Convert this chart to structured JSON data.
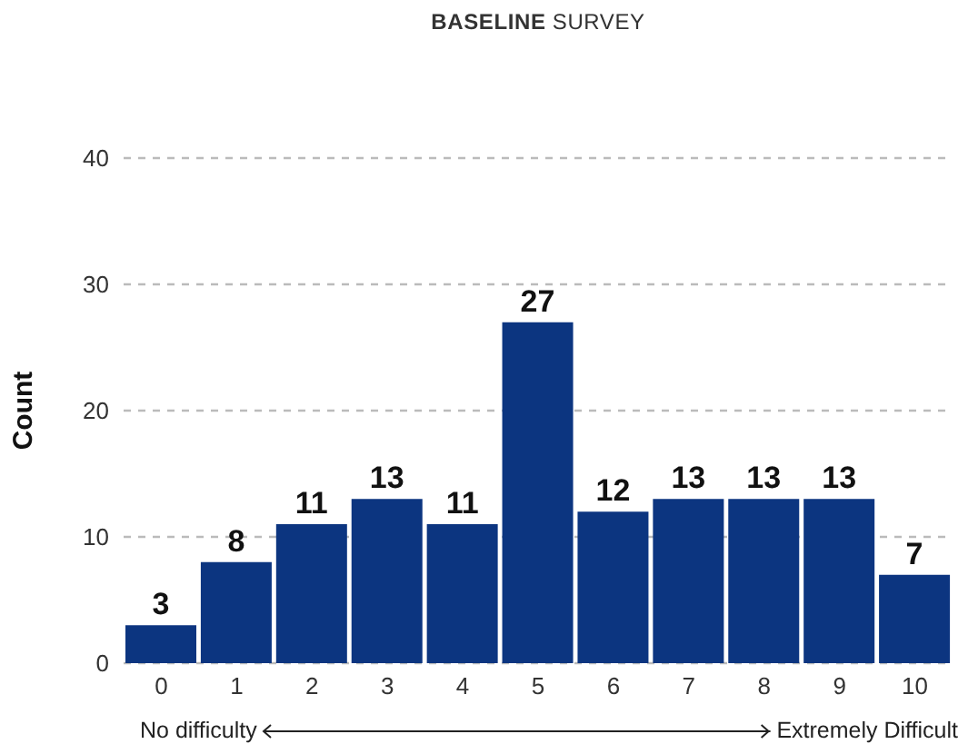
{
  "chart_data": {
    "type": "bar",
    "title": "BASELINE SURVEY",
    "ylabel": "Count",
    "categories": [
      "0",
      "1",
      "2",
      "3",
      "4",
      "5",
      "6",
      "7",
      "8",
      "9",
      "10"
    ],
    "values": [
      3,
      8,
      11,
      13,
      11,
      27,
      12,
      13,
      13,
      13,
      7
    ],
    "color": "#0c3580",
    "ylim": [
      0,
      40
    ],
    "yticks": [
      0,
      10,
      20,
      30,
      40
    ],
    "grid": "y",
    "data_labels": true,
    "annotations": [
      "No difficulty",
      "Extremely Difficult"
    ]
  }
}
